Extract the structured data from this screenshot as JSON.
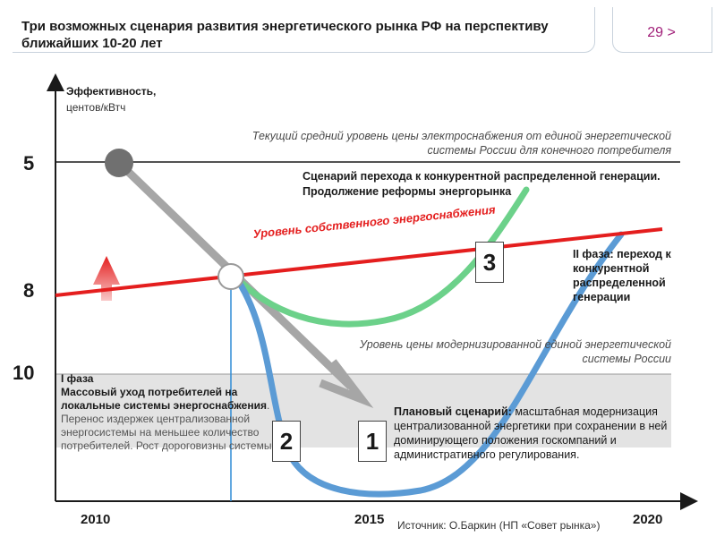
{
  "title": "Три возможных сценария развития энергетического рынка РФ на перспективу ближайших 10-20 лет",
  "page_number": "29 >",
  "y_axis": {
    "title": "Эффективность,",
    "unit": "центов/кВтч",
    "ticks": [
      "5",
      "8",
      "10"
    ]
  },
  "x_axis": {
    "ticks": [
      "2010",
      "2015",
      "2020"
    ]
  },
  "labels": {
    "current_level": "Текущий средний уровень цены электроснабжения от единой энергетической системы России для конечного потребителя",
    "own_supply_level": "Уровень собственного энергоснабжения",
    "scenario3": "Сценарий перехода к конкурентной распределенной генерации. Продолжение реформы энергорынка",
    "phase2": "II фаза: переход к конкурентной распределенной генерации",
    "modern_level": "Уровень цены модернизированной единой энергетической системы России",
    "phase1_title": "I фаза",
    "phase1_bold": "Массовый уход потребителей на локальные системы энергоснабжения",
    "phase1_text": ". Перенос издержек централизованной энергосистемы на меньшее количество потребителей. Рост дороговизны системы.",
    "planned_bold": "Плановый сценарий:",
    "planned_text": " масштабная модернизация централизованной энергетики при сохранении в ней доминирующего положения госкомпаний и административного регулирования.",
    "box1": "1",
    "box2": "2",
    "box3": "3",
    "source": "Источник: О.Баркин (НП «Совет рынка»)"
  },
  "colors": {
    "red_line": "#e41e1e",
    "green_curve": "#6cd18a",
    "blue_curve": "#5b9bd5",
    "gray_arrow": "#a6a6a6",
    "shaded_band": "#e3e3e3",
    "accent_page": "#a01e78"
  },
  "icons": [
    "red-up-arrow-icon",
    "gray-diagonal-arrow-icon",
    "start-point-icon",
    "intersection-point-icon"
  ]
}
